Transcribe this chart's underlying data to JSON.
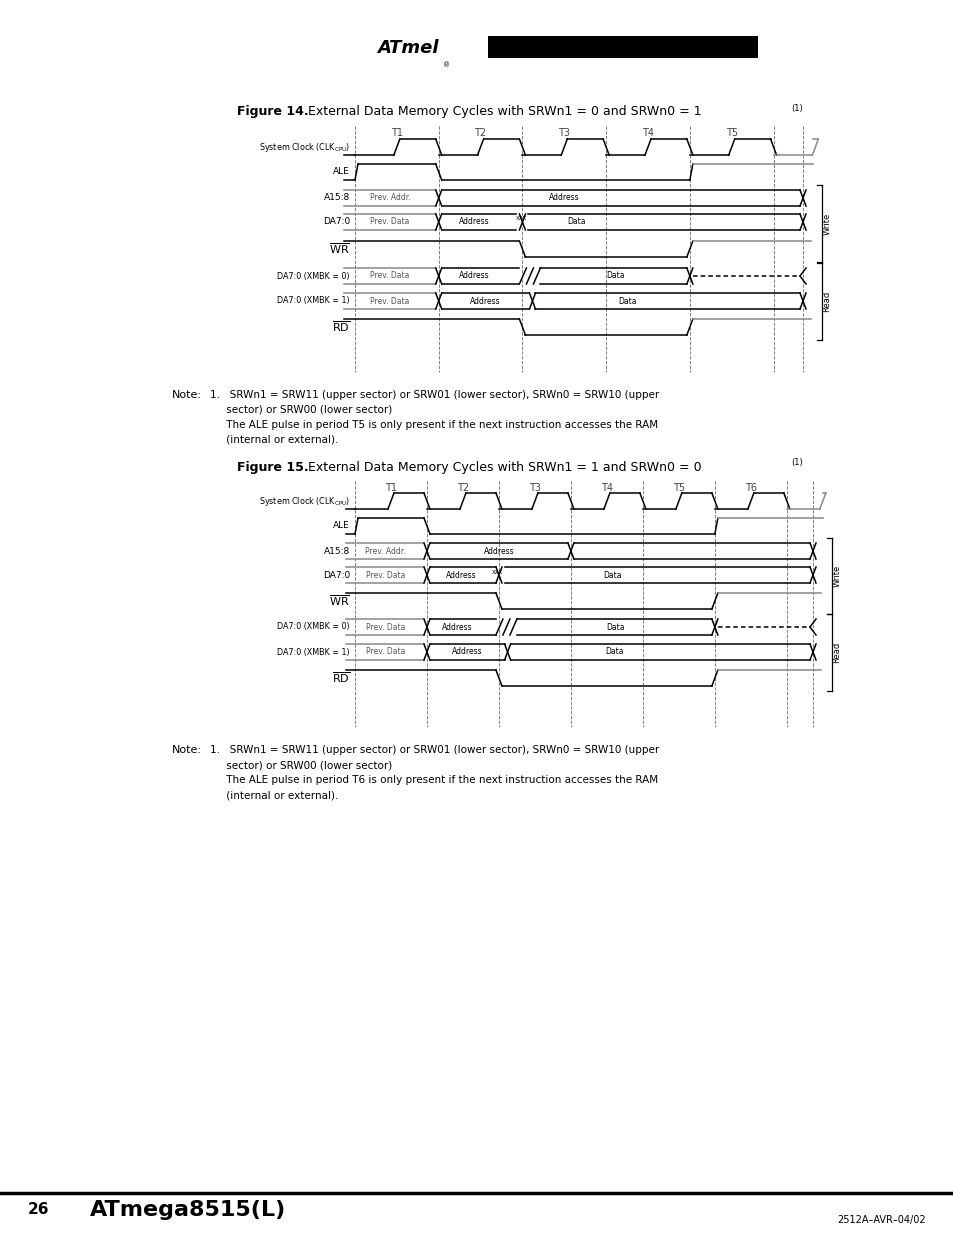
{
  "fig_width": 9.54,
  "fig_height": 12.35,
  "bg_color": "#ffffff",
  "fig14_title_bold": "Figure 14.",
  "fig14_title_rest": "  External Data Memory Cycles with SRWn1 = 0 and SRWn0 = 1",
  "fig14_super": "(1)",
  "fig14_periods": [
    "T1",
    "T2",
    "T3",
    "T4",
    "T5"
  ],
  "fig15_title_bold": "Figure 15.",
  "fig15_title_rest": "  External Data Memory Cycles with SRWn1 = 1 and SRWn0 = 0",
  "fig15_super": "(1)",
  "fig15_periods": [
    "T1",
    "T2",
    "T3",
    "T4",
    "T5",
    "T6"
  ],
  "note14_line1": "1.   SRWn1 = SRW11 (upper sector) or SRW01 (lower sector), SRWn0 = SRW10 (upper",
  "note14_line2": "     sector) or SRW00 (lower sector)",
  "note14_line3": "     The ALE pulse in period T5 is only present if the next instruction accesses the RAM",
  "note14_line4": "     (internal or external).",
  "note15_line1": "1.   SRWn1 = SRW11 (upper sector) or SRW01 (lower sector), SRWn0 = SRW10 (upper",
  "note15_line2": "     sector) or SRW00 (lower sector)",
  "note15_line3": "     The ALE pulse in period T6 is only present if the next instruction accesses the RAM",
  "note15_line4": "     (internal or external).",
  "page_num": "26",
  "chip_name": "ATmega8515(L)",
  "doc_code": "2512A–AVR–04/02"
}
